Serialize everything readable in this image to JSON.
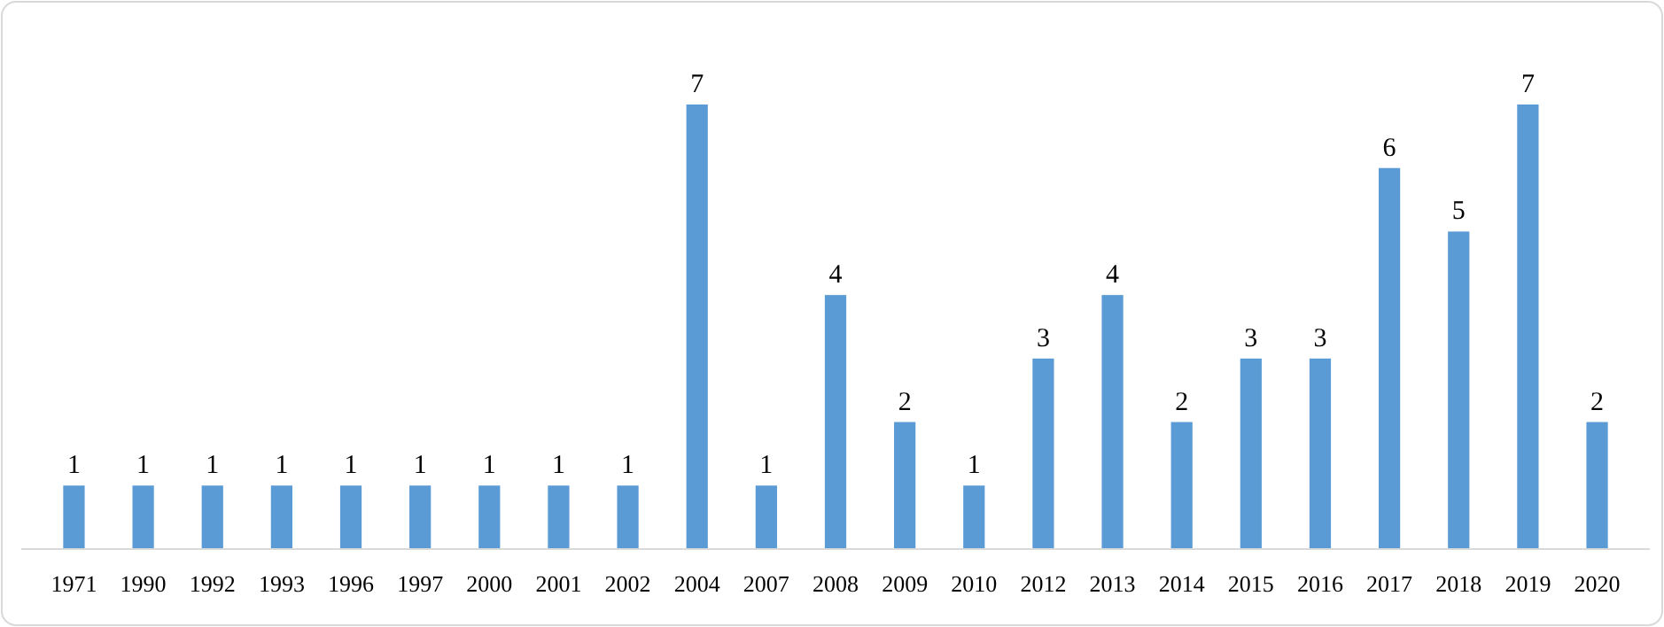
{
  "chart_data": {
    "type": "bar",
    "categories": [
      "1971",
      "1990",
      "1992",
      "1993",
      "1996",
      "1997",
      "2000",
      "2001",
      "2002",
      "2004",
      "2007",
      "2008",
      "2009",
      "2010",
      "2012",
      "2013",
      "2014",
      "2015",
      "2016",
      "2017",
      "2018",
      "2019",
      "2020"
    ],
    "values": [
      1,
      1,
      1,
      1,
      1,
      1,
      1,
      1,
      1,
      7,
      1,
      4,
      2,
      1,
      3,
      4,
      2,
      3,
      3,
      6,
      5,
      7,
      2
    ],
    "color": "#5b9bd5",
    "data_labels": true
  }
}
